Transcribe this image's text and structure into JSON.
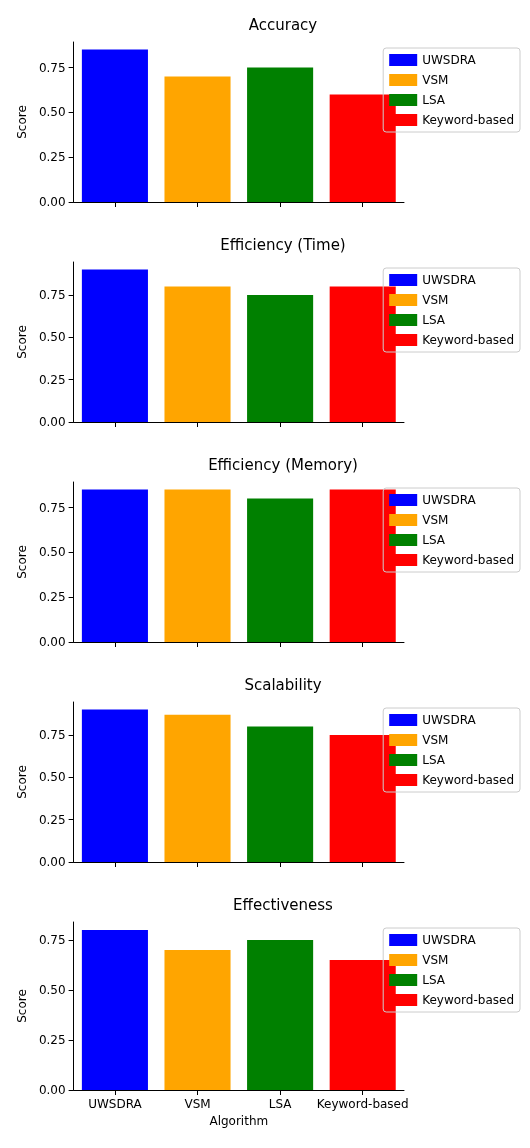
{
  "chart_data": [
    {
      "type": "bar",
      "title": "Accuracy",
      "ylabel": "Score",
      "categories": [
        null,
        null,
        null,
        null
      ],
      "series": [
        {
          "name": "UWSDRA",
          "color": "#0000ff",
          "values": [
            0.85,
            null,
            null,
            null
          ]
        },
        {
          "name": "VSM",
          "color": "#ffa500",
          "values": [
            null,
            0.7,
            null,
            null
          ]
        },
        {
          "name": "LSA",
          "color": "#008000",
          "values": [
            null,
            null,
            0.75,
            null
          ]
        },
        {
          "name": "Keyword-based",
          "color": "#ff0000",
          "values": [
            null,
            null,
            null,
            0.6
          ]
        }
      ],
      "ylim": [
        0,
        0.8925
      ],
      "yticks": [
        {
          "value": 0,
          "label": "0.00"
        },
        {
          "value": 0.25,
          "label": "0.25"
        },
        {
          "value": 0.5,
          "label": "0.50"
        },
        {
          "value": 0.75,
          "label": "0.75"
        }
      ],
      "legend": "top right",
      "tick_labels": "y"
    },
    {
      "type": "bar",
      "title": "Efficiency (Time)",
      "ylabel": "Score",
      "categories": [
        null,
        null,
        null,
        null
      ],
      "series": [
        {
          "name": "UWSDRA",
          "color": "#0000ff",
          "values": [
            0.9,
            null,
            null,
            null
          ]
        },
        {
          "name": "VSM",
          "color": "#ffa500",
          "values": [
            null,
            0.8,
            null,
            null
          ]
        },
        {
          "name": "LSA",
          "color": "#008000",
          "values": [
            null,
            null,
            0.75,
            null
          ]
        },
        {
          "name": "Keyword-based",
          "color": "#ff0000",
          "values": [
            null,
            null,
            null,
            0.8
          ]
        }
      ],
      "ylim": [
        0,
        0.945
      ],
      "yticks": [
        {
          "value": 0,
          "label": "0.00"
        },
        {
          "value": 0.25,
          "label": "0.25"
        },
        {
          "value": 0.5,
          "label": "0.50"
        },
        {
          "value": 0.75,
          "label": "0.75"
        }
      ],
      "legend": "top right",
      "tick_labels": "y"
    },
    {
      "type": "bar",
      "title": "Efficiency (Memory)",
      "ylabel": "Score",
      "categories": [
        null,
        null,
        null,
        null
      ],
      "series": [
        {
          "name": "UWSDRA",
          "color": "#0000ff",
          "values": [
            0.85,
            null,
            null,
            null
          ]
        },
        {
          "name": "VSM",
          "color": "#ffa500",
          "values": [
            null,
            0.85,
            null,
            null
          ]
        },
        {
          "name": "LSA",
          "color": "#008000",
          "values": [
            null,
            null,
            0.8,
            null
          ]
        },
        {
          "name": "Keyword-based",
          "color": "#ff0000",
          "values": [
            null,
            null,
            null,
            0.85
          ]
        }
      ],
      "ylim": [
        0,
        0.8925
      ],
      "yticks": [
        {
          "value": 0,
          "label": "0.00"
        },
        {
          "value": 0.25,
          "label": "0.25"
        },
        {
          "value": 0.5,
          "label": "0.50"
        },
        {
          "value": 0.75,
          "label": "0.75"
        }
      ],
      "legend": "top right",
      "tick_labels": "y"
    },
    {
      "type": "bar",
      "title": "Scalability",
      "ylabel": "Score",
      "categories": [
        null,
        null,
        null,
        null
      ],
      "series": [
        {
          "name": "UWSDRA",
          "color": "#0000ff",
          "values": [
            0.9,
            null,
            null,
            null
          ]
        },
        {
          "name": "VSM",
          "color": "#ffa500",
          "values": [
            null,
            0.87,
            null,
            null
          ]
        },
        {
          "name": "LSA",
          "color": "#008000",
          "values": [
            null,
            null,
            0.8,
            null
          ]
        },
        {
          "name": "Keyword-based",
          "color": "#ff0000",
          "values": [
            null,
            null,
            null,
            0.75
          ]
        }
      ],
      "ylim": [
        0,
        0.945
      ],
      "yticks": [
        {
          "value": 0,
          "label": "0.00"
        },
        {
          "value": 0.25,
          "label": "0.25"
        },
        {
          "value": 0.5,
          "label": "0.50"
        },
        {
          "value": 0.75,
          "label": "0.75"
        }
      ],
      "legend": "top right",
      "tick_labels": "y"
    },
    {
      "type": "bar",
      "title": "Effectiveness",
      "xlabel": "Algorithm",
      "ylabel": "Score",
      "categories": [
        "UWSDRA",
        "VSM",
        "LSA",
        "Keyword-based"
      ],
      "series": [
        {
          "name": "UWSDRA",
          "color": "#0000ff",
          "values": [
            0.8,
            null,
            null,
            null
          ]
        },
        {
          "name": "VSM",
          "color": "#ffa500",
          "values": [
            null,
            0.7,
            null,
            null
          ]
        },
        {
          "name": "LSA",
          "color": "#008000",
          "values": [
            null,
            null,
            0.75,
            null
          ]
        },
        {
          "name": "Keyword-based",
          "color": "#ff0000",
          "values": [
            null,
            null,
            null,
            0.65
          ]
        }
      ],
      "ylim": [
        0,
        0.84
      ],
      "yticks": [
        {
          "value": 0,
          "label": "0.00"
        },
        {
          "value": 0.25,
          "label": "0.25"
        },
        {
          "value": 0.5,
          "label": "0.50"
        },
        {
          "value": 0.75,
          "label": "0.75"
        }
      ],
      "legend": "top right"
    }
  ]
}
